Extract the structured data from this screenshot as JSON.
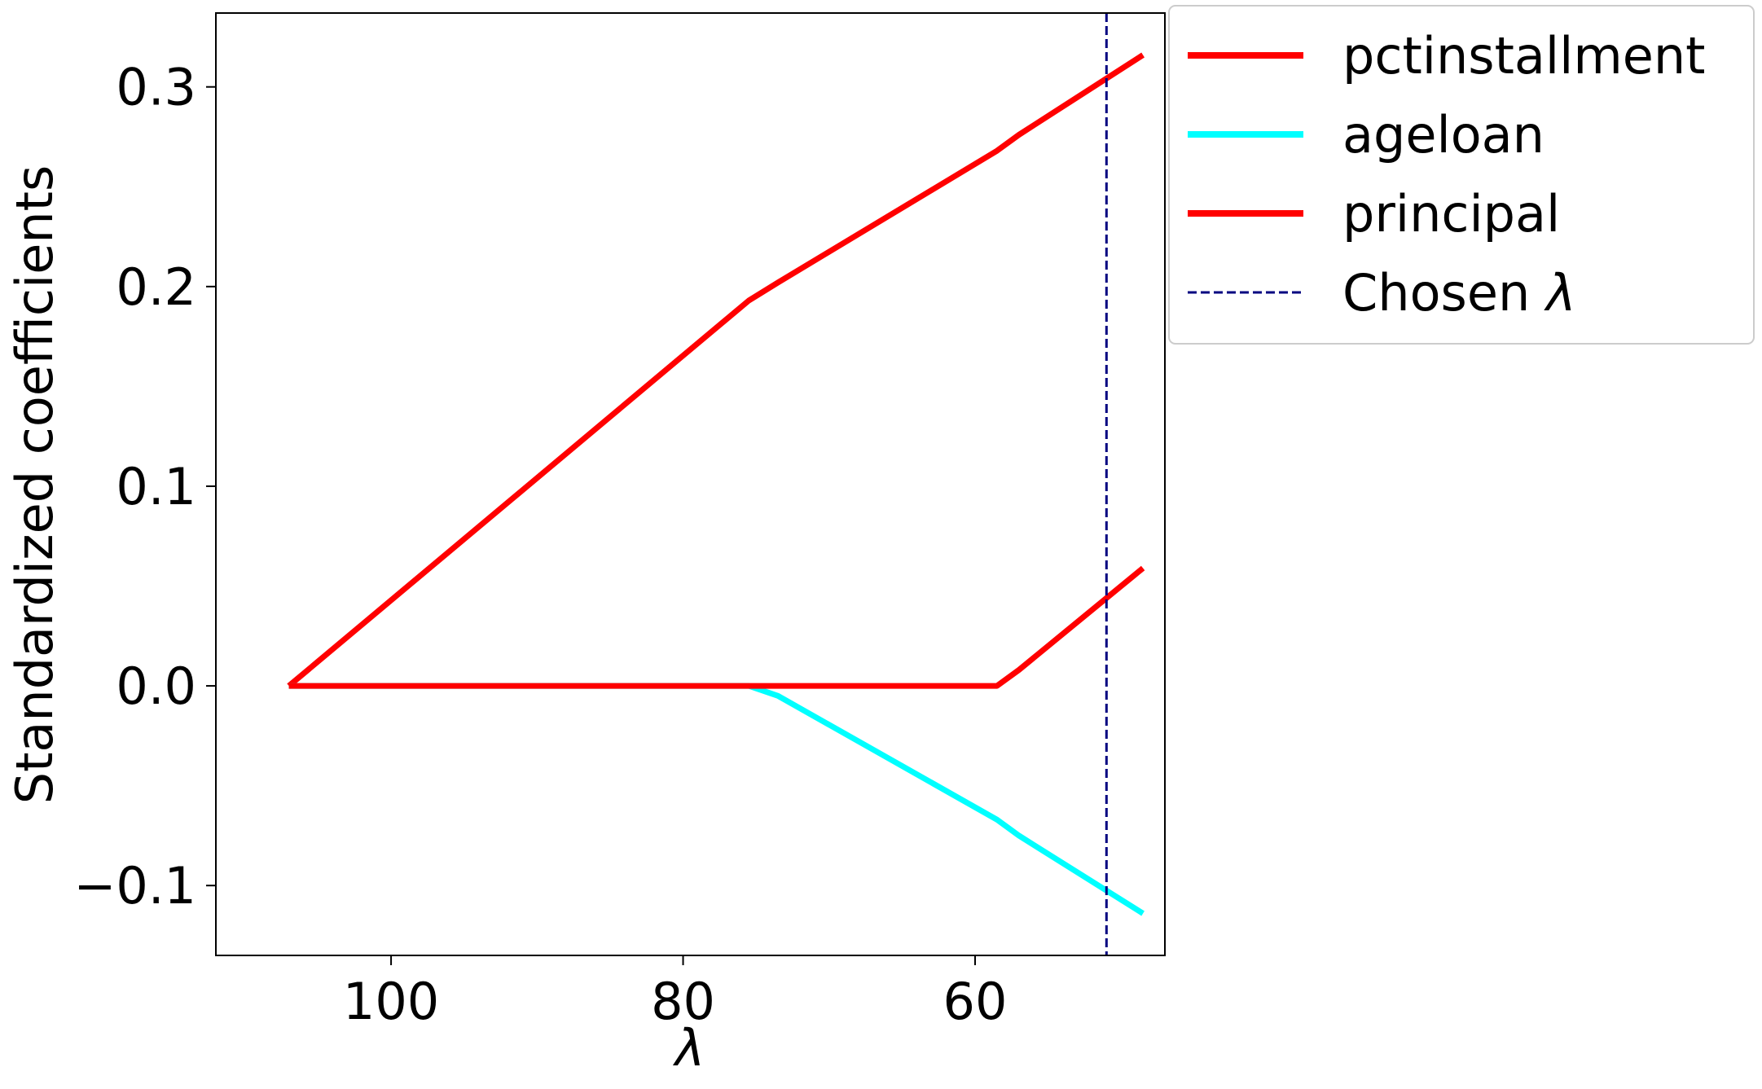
{
  "chart_data": {
    "type": "line",
    "title": "",
    "xlabel": "λ",
    "ylabel": "Standardized coefficients",
    "x_axis_inverted": true,
    "xlim": [
      112,
      47
    ],
    "ylim": [
      -0.135,
      0.337
    ],
    "xticks": [
      100,
      80,
      60
    ],
    "xtick_labels": [
      "100",
      "80",
      "60"
    ],
    "yticks": [
      -0.1,
      0.0,
      0.1,
      0.2,
      0.3
    ],
    "ytick_labels": [
      "−0.1",
      "0.0",
      "0.1",
      "0.2",
      "0.3"
    ],
    "grid": false,
    "legend_position": "outside-top-right",
    "series": [
      {
        "name": "pctinstallment",
        "color": "#ff0000",
        "style": "solid",
        "x": [
          107,
          75.5,
          73.5,
          58.5,
          57,
          48.5
        ],
        "y": [
          0.0,
          0.193,
          0.202,
          0.268,
          0.276,
          0.316
        ]
      },
      {
        "name": "ageloan",
        "color": "#00ffff",
        "style": "solid",
        "x": [
          107,
          75.5,
          73.5,
          58.5,
          57,
          48.5
        ],
        "y": [
          0.0,
          0.0,
          -0.005,
          -0.067,
          -0.075,
          -0.114
        ]
      },
      {
        "name": "principal",
        "color": "#ff0000",
        "style": "solid",
        "x": [
          107,
          75.5,
          73.5,
          58.5,
          57,
          48.5
        ],
        "y": [
          0.0,
          0.0,
          0.0,
          0.0,
          0.008,
          0.059
        ]
      }
    ],
    "reference_lines": [
      {
        "name": "Chosen λ",
        "orientation": "vertical",
        "x": 51,
        "color": "#000080",
        "style": "dashed"
      }
    ]
  },
  "legend": {
    "entries": [
      {
        "label": "pctinstallment",
        "color": "#ff0000",
        "style": "solid"
      },
      {
        "label": "ageloan",
        "color": "#00ffff",
        "style": "solid"
      },
      {
        "label": "principal",
        "color": "#ff0000",
        "style": "solid"
      },
      {
        "label": "Chosen λ",
        "color": "#000080",
        "style": "dashed"
      }
    ]
  }
}
